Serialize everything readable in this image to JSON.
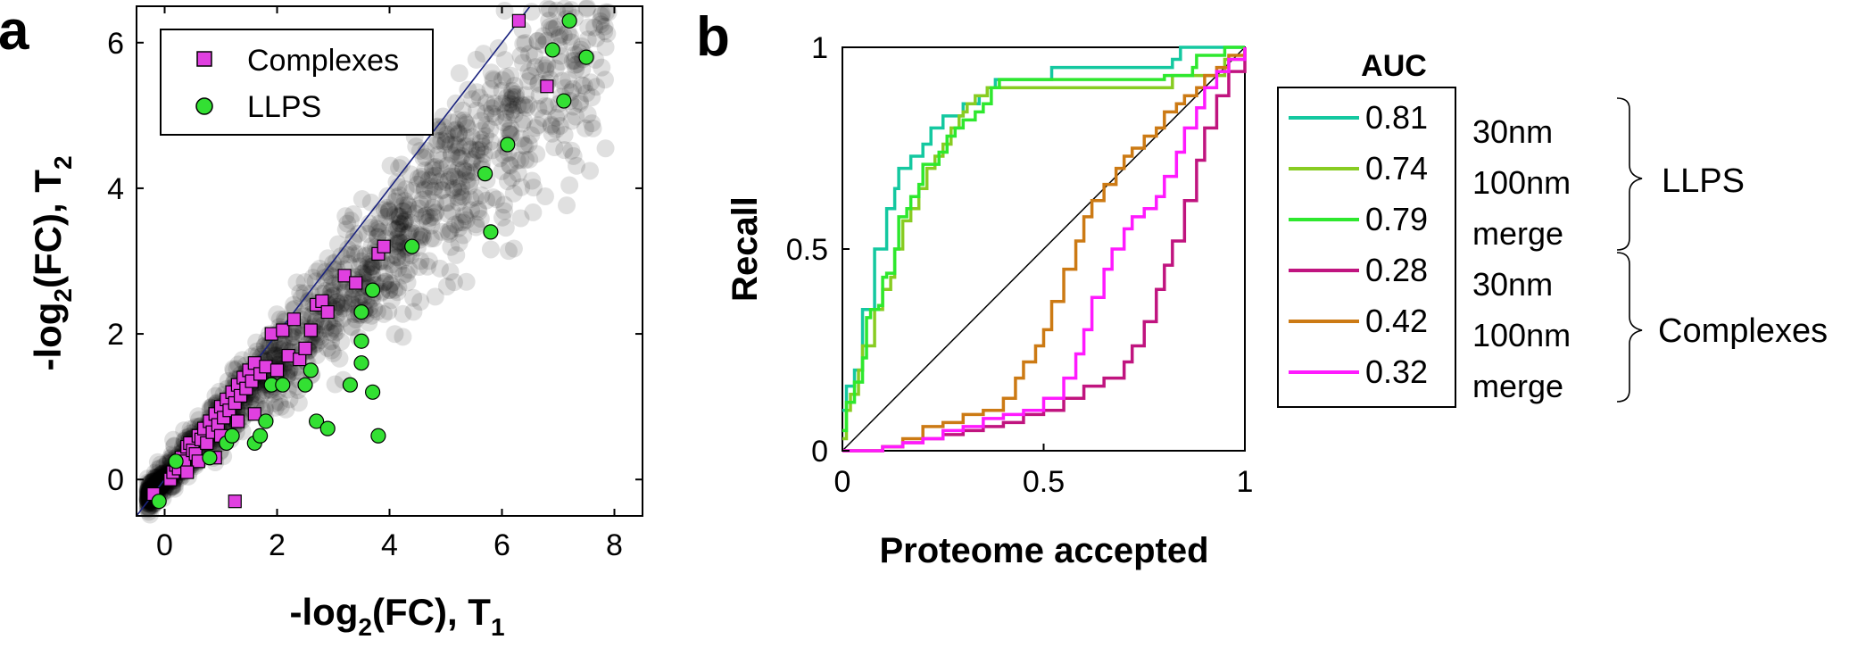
{
  "panel_labels": {
    "a": "a",
    "b": "b"
  },
  "chart_data": [
    {
      "type": "scatter",
      "panel": "a",
      "xlabel": {
        "main": "-log",
        "sub": "2",
        "mid": "(FC), T",
        "sub2": "1"
      },
      "ylabel": {
        "main": "-log",
        "sub": "2",
        "mid": "(FC), T",
        "sub2": "2"
      },
      "xlim": [
        -0.5,
        8.5
      ],
      "ylim": [
        -0.5,
        6.5
      ],
      "xticks": [
        0,
        2,
        4,
        6,
        8
      ],
      "yticks": [
        0,
        2,
        4,
        6
      ],
      "xtick_labels": [
        "0",
        "2",
        "4",
        "6",
        "8"
      ],
      "ytick_labels": [
        "0",
        "2",
        "4",
        "6"
      ],
      "diagonal": "y = x",
      "legend": {
        "position": "top-left",
        "entries": [
          "Complexes",
          "LLPS"
        ]
      },
      "colors": {
        "complexes": "#e040e0",
        "llps": "#33e033",
        "background": "#000000",
        "diagonal": "#1a237e"
      },
      "series": [
        {
          "name": "Complexes",
          "marker": "square",
          "points": [
            [
              -0.2,
              -0.2
            ],
            [
              0.1,
              0.0
            ],
            [
              0.15,
              0.1
            ],
            [
              0.2,
              0.2
            ],
            [
              0.25,
              0.15
            ],
            [
              0.3,
              0.3
            ],
            [
              0.35,
              0.25
            ],
            [
              0.4,
              0.45
            ],
            [
              0.45,
              0.5
            ],
            [
              0.5,
              0.4
            ],
            [
              0.55,
              0.35
            ],
            [
              0.6,
              0.6
            ],
            [
              0.65,
              0.55
            ],
            [
              0.7,
              0.7
            ],
            [
              0.75,
              0.5
            ],
            [
              0.8,
              0.8
            ],
            [
              0.85,
              0.65
            ],
            [
              0.9,
              0.9
            ],
            [
              0.95,
              0.75
            ],
            [
              1.0,
              1.0
            ],
            [
              1.05,
              0.85
            ],
            [
              1.1,
              1.1
            ],
            [
              1.15,
              0.95
            ],
            [
              1.2,
              1.2
            ],
            [
              1.25,
              1.05
            ],
            [
              1.3,
              1.3
            ],
            [
              1.35,
              1.15
            ],
            [
              1.4,
              1.4
            ],
            [
              1.45,
              1.25
            ],
            [
              1.5,
              1.5
            ],
            [
              1.55,
              1.35
            ],
            [
              1.6,
              1.6
            ],
            [
              1.7,
              1.45
            ],
            [
              1.8,
              1.55
            ],
            [
              1.9,
              2.0
            ],
            [
              2.0,
              1.5
            ],
            [
              2.1,
              2.05
            ],
            [
              2.2,
              1.7
            ],
            [
              2.3,
              2.2
            ],
            [
              2.4,
              1.65
            ],
            [
              2.5,
              1.8
            ],
            [
              2.6,
              2.05
            ],
            [
              2.7,
              2.4
            ],
            [
              2.8,
              2.45
            ],
            [
              2.9,
              2.3
            ],
            [
              3.2,
              2.8
            ],
            [
              3.4,
              2.7
            ],
            [
              3.8,
              3.1
            ],
            [
              3.9,
              3.2
            ],
            [
              1.25,
              -0.3
            ],
            [
              0.6,
              0.25
            ],
            [
              0.4,
              0.1
            ],
            [
              0.9,
              0.3
            ],
            [
              1.0,
              0.6
            ],
            [
              1.3,
              0.8
            ],
            [
              1.6,
              0.9
            ],
            [
              6.3,
              6.3
            ],
            [
              6.8,
              5.4
            ]
          ]
        },
        {
          "name": "LLPS",
          "marker": "circle",
          "points": [
            [
              -0.1,
              -0.3
            ],
            [
              0.2,
              0.25
            ],
            [
              0.8,
              0.3
            ],
            [
              1.1,
              0.5
            ],
            [
              1.2,
              0.6
            ],
            [
              1.6,
              0.5
            ],
            [
              1.7,
              0.6
            ],
            [
              1.8,
              0.8
            ],
            [
              1.9,
              1.3
            ],
            [
              2.1,
              1.3
            ],
            [
              2.5,
              1.3
            ],
            [
              2.6,
              1.5
            ],
            [
              2.7,
              0.8
            ],
            [
              2.9,
              0.7
            ],
            [
              3.3,
              1.3
            ],
            [
              3.5,
              1.6
            ],
            [
              3.5,
              2.3
            ],
            [
              3.7,
              1.2
            ],
            [
              3.8,
              0.6
            ],
            [
              3.5,
              1.9
            ],
            [
              3.7,
              2.6
            ],
            [
              4.4,
              3.2
            ],
            [
              5.8,
              3.4
            ],
            [
              5.7,
              4.2
            ],
            [
              6.1,
              4.6
            ],
            [
              6.9,
              5.9
            ],
            [
              7.1,
              5.2
            ],
            [
              7.2,
              6.3
            ],
            [
              7.5,
              5.8
            ]
          ]
        }
      ]
    },
    {
      "type": "line",
      "panel": "b",
      "xlabel": "Proteome accepted",
      "ylabel": "Recall",
      "xlim": [
        0,
        1
      ],
      "ylim": [
        0,
        1
      ],
      "xticks": [
        0,
        0.5,
        1
      ],
      "yticks": [
        0,
        0.5,
        1
      ],
      "xtick_labels": [
        "0",
        "0.5",
        "1"
      ],
      "ytick_labels": [
        "0",
        "0.5",
        "1"
      ],
      "diagonal": "y = x",
      "legend_title": "AUC",
      "legend": {
        "position": "outside-right"
      },
      "group_labels": [
        "LLPS",
        "Complexes"
      ],
      "series": [
        {
          "name": "30nm",
          "auc": "0.81",
          "group": "LLPS",
          "color": "#14c8a0",
          "x": [
            0,
            0.01,
            0.02,
            0.03,
            0.04,
            0.05,
            0.07,
            0.08,
            0.09,
            0.11,
            0.12,
            0.13,
            0.14,
            0.16,
            0.17,
            0.19,
            0.2,
            0.22,
            0.25,
            0.28,
            0.3,
            0.31,
            0.34,
            0.36,
            0.38,
            0.5,
            0.52,
            0.6,
            0.8,
            0.82,
            0.84,
            0.9,
            0.96,
            1.0
          ],
          "y": [
            0.1,
            0.16,
            0.16,
            0.2,
            0.2,
            0.35,
            0.35,
            0.5,
            0.5,
            0.6,
            0.6,
            0.65,
            0.7,
            0.7,
            0.73,
            0.73,
            0.76,
            0.8,
            0.83,
            0.83,
            0.86,
            0.86,
            0.88,
            0.9,
            0.92,
            0.92,
            0.95,
            0.95,
            0.95,
            0.97,
            1.0,
            1.0,
            1.0,
            1.0
          ]
        },
        {
          "name": "100nm",
          "auc": "0.74",
          "group": "LLPS",
          "color": "#88cc22",
          "x": [
            0,
            0.01,
            0.02,
            0.04,
            0.05,
            0.07,
            0.08,
            0.1,
            0.12,
            0.13,
            0.15,
            0.17,
            0.19,
            0.21,
            0.23,
            0.25,
            0.27,
            0.29,
            0.3,
            0.31,
            0.33,
            0.36,
            0.39,
            0.5,
            0.6,
            0.7,
            0.8,
            0.82,
            0.9,
            0.95,
            1.0
          ],
          "y": [
            0.03,
            0.1,
            0.14,
            0.2,
            0.26,
            0.26,
            0.35,
            0.4,
            0.43,
            0.5,
            0.57,
            0.6,
            0.65,
            0.7,
            0.73,
            0.76,
            0.8,
            0.83,
            0.84,
            0.86,
            0.88,
            0.9,
            0.9,
            0.9,
            0.9,
            0.9,
            0.9,
            0.93,
            0.93,
            0.97,
            1.0
          ]
        },
        {
          "name": "merge",
          "auc": "0.79",
          "group": "LLPS",
          "color": "#2ee82e",
          "x": [
            0,
            0.01,
            0.03,
            0.05,
            0.06,
            0.07,
            0.09,
            0.1,
            0.11,
            0.13,
            0.14,
            0.16,
            0.17,
            0.19,
            0.2,
            0.22,
            0.24,
            0.26,
            0.28,
            0.3,
            0.33,
            0.35,
            0.37,
            0.39,
            0.45,
            0.55,
            0.65,
            0.8,
            0.87,
            0.88,
            0.95,
            1.0
          ],
          "y": [
            0.05,
            0.12,
            0.17,
            0.23,
            0.33,
            0.35,
            0.36,
            0.43,
            0.44,
            0.5,
            0.58,
            0.6,
            0.63,
            0.66,
            0.71,
            0.71,
            0.74,
            0.78,
            0.8,
            0.82,
            0.84,
            0.86,
            0.9,
            0.92,
            0.92,
            0.92,
            0.92,
            0.93,
            0.95,
            0.98,
            1.0,
            1.0
          ]
        },
        {
          "name": "30nm",
          "auc": "0.28",
          "group": "Complexes",
          "color": "#c0147f",
          "x": [
            0,
            0.05,
            0.1,
            0.15,
            0.2,
            0.25,
            0.3,
            0.35,
            0.4,
            0.45,
            0.5,
            0.55,
            0.6,
            0.65,
            0.7,
            0.72,
            0.75,
            0.78,
            0.8,
            0.82,
            0.85,
            0.88,
            0.9,
            0.93,
            0.96,
            1.0
          ],
          "y": [
            0,
            0,
            0.01,
            0.02,
            0.03,
            0.04,
            0.05,
            0.06,
            0.07,
            0.09,
            0.1,
            0.13,
            0.16,
            0.18,
            0.22,
            0.26,
            0.32,
            0.4,
            0.46,
            0.52,
            0.62,
            0.72,
            0.8,
            0.88,
            0.94,
            1.0
          ]
        },
        {
          "name": "100nm",
          "auc": "0.42",
          "group": "Complexes",
          "color": "#cc7a14",
          "x": [
            0,
            0.1,
            0.15,
            0.2,
            0.25,
            0.3,
            0.35,
            0.4,
            0.43,
            0.45,
            0.48,
            0.5,
            0.52,
            0.55,
            0.58,
            0.6,
            0.62,
            0.65,
            0.68,
            0.7,
            0.72,
            0.75,
            0.78,
            0.8,
            0.83,
            0.85,
            0.88,
            0.9,
            0.93,
            0.96,
            1.0
          ],
          "y": [
            0,
            0.01,
            0.03,
            0.06,
            0.07,
            0.09,
            0.1,
            0.13,
            0.18,
            0.22,
            0.26,
            0.3,
            0.37,
            0.45,
            0.52,
            0.58,
            0.62,
            0.66,
            0.7,
            0.73,
            0.75,
            0.78,
            0.8,
            0.84,
            0.86,
            0.88,
            0.9,
            0.93,
            0.95,
            0.98,
            1.0
          ]
        },
        {
          "name": "merge",
          "auc": "0.32",
          "group": "Complexes",
          "color": "#ff1aff",
          "x": [
            0,
            0.05,
            0.1,
            0.15,
            0.2,
            0.25,
            0.3,
            0.35,
            0.4,
            0.45,
            0.5,
            0.55,
            0.58,
            0.6,
            0.62,
            0.65,
            0.67,
            0.7,
            0.72,
            0.75,
            0.78,
            0.8,
            0.83,
            0.85,
            0.88,
            0.9,
            0.93,
            0.96,
            1.0
          ],
          "y": [
            0,
            0,
            0.01,
            0.02,
            0.03,
            0.05,
            0.06,
            0.08,
            0.09,
            0.1,
            0.13,
            0.18,
            0.24,
            0.3,
            0.38,
            0.45,
            0.5,
            0.55,
            0.58,
            0.6,
            0.63,
            0.68,
            0.74,
            0.8,
            0.85,
            0.9,
            0.94,
            0.97,
            1.0
          ]
        }
      ]
    }
  ]
}
